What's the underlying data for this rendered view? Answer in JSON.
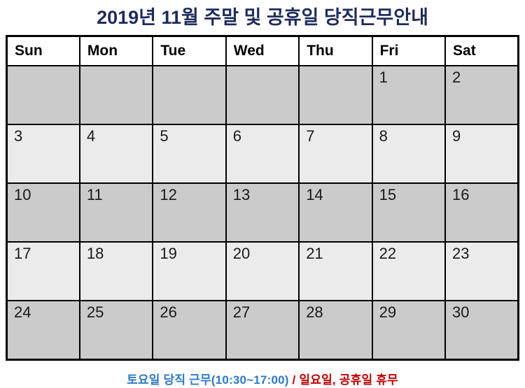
{
  "title": "2019년 11월 주말 및 공휴일 당직근무안내",
  "calendar": {
    "day_headers": [
      "Sun",
      "Mon",
      "Tue",
      "Wed",
      "Thu",
      "Fri",
      "Sat"
    ],
    "weeks": [
      [
        "",
        "",
        "",
        "",
        "",
        "1",
        "2"
      ],
      [
        "3",
        "4",
        "5",
        "6",
        "7",
        "8",
        "9"
      ],
      [
        "10",
        "11",
        "12",
        "13",
        "14",
        "15",
        "16"
      ],
      [
        "17",
        "18",
        "19",
        "20",
        "21",
        "22",
        "23"
      ],
      [
        "24",
        "25",
        "26",
        "27",
        "28",
        "29",
        "30"
      ]
    ]
  },
  "footer": {
    "saturday_duty": "토요일 당직 근무(10:30~17:00)",
    "separator": " / ",
    "holiday_off": "일요일, 공휴일 휴무"
  },
  "colors": {
    "title_navy": "#1F2C5C",
    "header_sun_red": "#FF0000",
    "header_sat_blue": "#0070C0",
    "header_weekday_black": "#000000",
    "date_default": "#1A1A1A",
    "date_sunday_red": "#C00000",
    "date_saturday_blue": "#6D92D0",
    "row_shade_dark": "#CBCBCB",
    "row_shade_light": "#EBEBEB",
    "header_bg": "#FFFFFF",
    "grid_border": "#000000",
    "footer_blue": "#2E79C4",
    "footer_red": "#C00000"
  }
}
